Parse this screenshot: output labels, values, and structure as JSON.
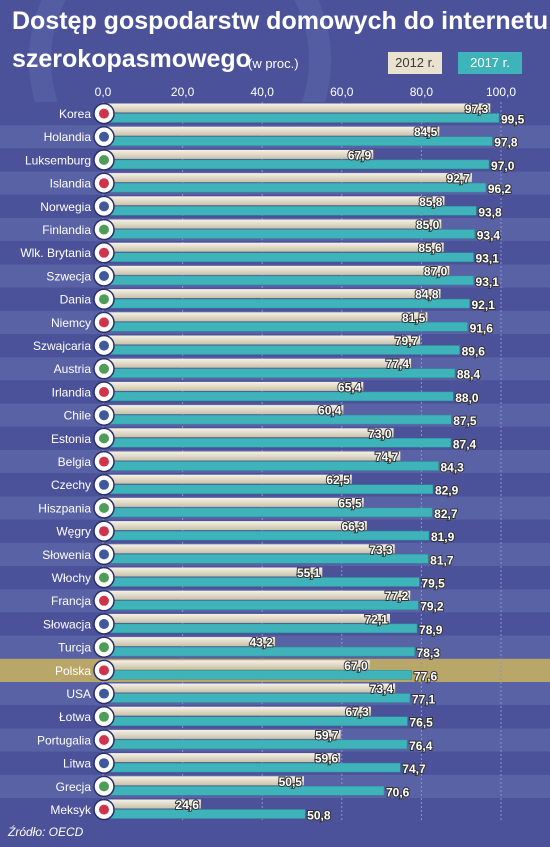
{
  "title_line1": "Dostęp gospodarstw domowych do internetu",
  "title_line2": "szerokopasmowego",
  "subtitle": "(w proc.)",
  "source": "Źródło: OECD",
  "colors": {
    "background": "#4b5299",
    "stripe": "#5a62a6",
    "bar_2012": "#e8e2cf",
    "bar_2017": "#3fb3ba",
    "highlight_row": "#b8a769"
  },
  "chart_data": {
    "type": "bar",
    "orientation": "horizontal",
    "xlim": [
      0,
      100
    ],
    "x_ticks": [
      "0,0",
      "20,0",
      "40,0",
      "60,0",
      "80,0",
      "100,0"
    ],
    "legend": [
      "2012 r.",
      "2017 r."
    ],
    "legend_position": "top-right",
    "highlight": "Polska",
    "categories": [
      "Korea",
      "Holandia",
      "Luksemburg",
      "Islandia",
      "Norwegia",
      "Finlandia",
      "Wlk. Brytania",
      "Szwecja",
      "Dania",
      "Niemcy",
      "Szwajcaria",
      "Austria",
      "Irlandia",
      "Chile",
      "Estonia",
      "Belgia",
      "Czechy",
      "Hiszpania",
      "Węgry",
      "Słowenia",
      "Włochy",
      "Francja",
      "Słowacja",
      "Turcja",
      "Polska",
      "USA",
      "Łotwa",
      "Portugalia",
      "Litwa",
      "Grecja",
      "Meksyk"
    ],
    "flags": [
      "kr-flag-icon",
      "nl-flag-icon",
      "lu-flag-icon",
      "is-flag-icon",
      "no-flag-icon",
      "fi-flag-icon",
      "gb-flag-icon",
      "se-flag-icon",
      "dk-flag-icon",
      "de-flag-icon",
      "ch-flag-icon",
      "at-flag-icon",
      "ie-flag-icon",
      "cl-flag-icon",
      "ee-flag-icon",
      "be-flag-icon",
      "cz-flag-icon",
      "es-flag-icon",
      "hu-flag-icon",
      "si-flag-icon",
      "it-flag-icon",
      "fr-flag-icon",
      "sk-flag-icon",
      "tr-flag-icon",
      "pl-flag-icon",
      "us-flag-icon",
      "lv-flag-icon",
      "pt-flag-icon",
      "lt-flag-icon",
      "gr-flag-icon",
      "mx-flag-icon"
    ],
    "series": [
      {
        "name": "2012 r.",
        "values": [
          97.3,
          84.5,
          67.9,
          92.7,
          85.8,
          85.0,
          85.6,
          87.0,
          84.8,
          81.5,
          79.7,
          77.4,
          65.4,
          60.4,
          73.0,
          74.7,
          62.5,
          65.5,
          66.3,
          73.3,
          55.1,
          77.2,
          72.1,
          43.2,
          67.0,
          73.4,
          67.3,
          59.7,
          59.6,
          50.5,
          24.6
        ],
        "labels": [
          "97,3",
          "84,5",
          "67,9",
          "92,7",
          "85,8",
          "85,0",
          "85,6",
          "87,0",
          "84,8",
          "81,5",
          "79,7",
          "77,4",
          "65,4",
          "60,4",
          "73,0",
          "74,7",
          "62,5",
          "65,5",
          "66,3",
          "73,3",
          "55,1",
          "77,2",
          "72,1",
          "43,2",
          "67,0",
          "73,4",
          "67,3",
          "59,7",
          "59,6",
          "50,5",
          "24,6"
        ]
      },
      {
        "name": "2017 r.",
        "values": [
          99.5,
          97.8,
          97.0,
          96.2,
          93.8,
          93.4,
          93.1,
          93.1,
          92.1,
          91.6,
          89.6,
          88.4,
          88.0,
          87.5,
          87.4,
          84.3,
          82.9,
          82.7,
          81.9,
          81.7,
          79.5,
          79.2,
          78.9,
          78.3,
          77.6,
          77.1,
          76.5,
          76.4,
          74.7,
          70.6,
          50.8
        ],
        "labels": [
          "99,5",
          "97,8",
          "97,0",
          "96,2",
          "93,8",
          "93,4",
          "93,1",
          "93,1",
          "92,1",
          "91,6",
          "89,6",
          "88,4",
          "88,0",
          "87,5",
          "87,4",
          "84,3",
          "82,9",
          "82,7",
          "81,9",
          "81,7",
          "79,5",
          "79,2",
          "78,9",
          "78,3",
          "77,6",
          "77,1",
          "76,5",
          "76,4",
          "74,7",
          "70,6",
          "50,8"
        ]
      }
    ]
  }
}
